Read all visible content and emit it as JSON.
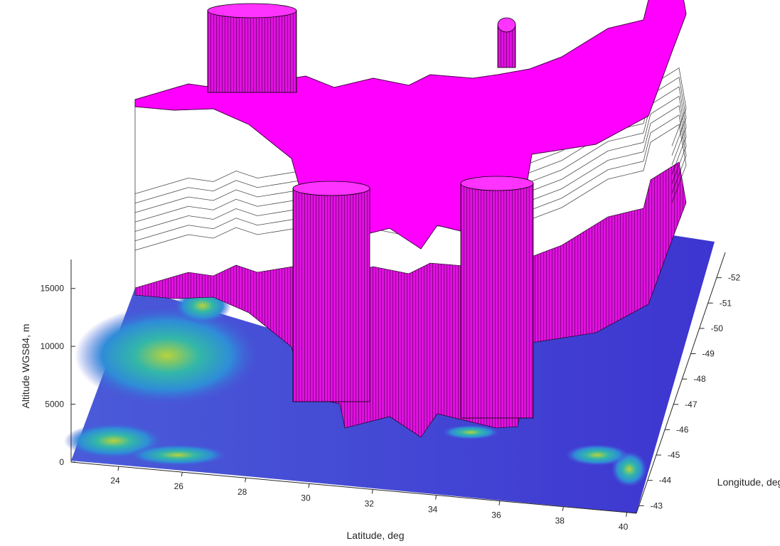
{
  "chart_data": {
    "type": "surface3d",
    "title": "",
    "xlabel": "Latitude, deg",
    "ylabel": "Longitude, deg",
    "zlabel": "Altitude WGS84, m",
    "xlim": [
      22.5,
      40.3
    ],
    "ylim": [
      -53,
      -42.7
    ],
    "zlim": [
      0,
      17500
    ],
    "x_ticks": [
      "24",
      "26",
      "28",
      "30",
      "32",
      "34",
      "36",
      "38",
      "40"
    ],
    "y_ticks": [
      "-52",
      "-51",
      "-50",
      "-49",
      "-48",
      "-47",
      "-46",
      "-45",
      "-44",
      "-43"
    ],
    "z_ticks": [
      "0",
      "5000",
      "10000",
      "15000"
    ],
    "series": [
      {
        "kind": "terrain-surface",
        "colormap": "parula",
        "base_color": "#3a3ad2",
        "max_altitude_m": 6500
      },
      {
        "kind": "extruded-airspace-volume",
        "color": "#ff00ff",
        "edge_color": "#000000",
        "top_altitude_m": 17000
      }
    ],
    "grid": false,
    "legend": "none"
  }
}
